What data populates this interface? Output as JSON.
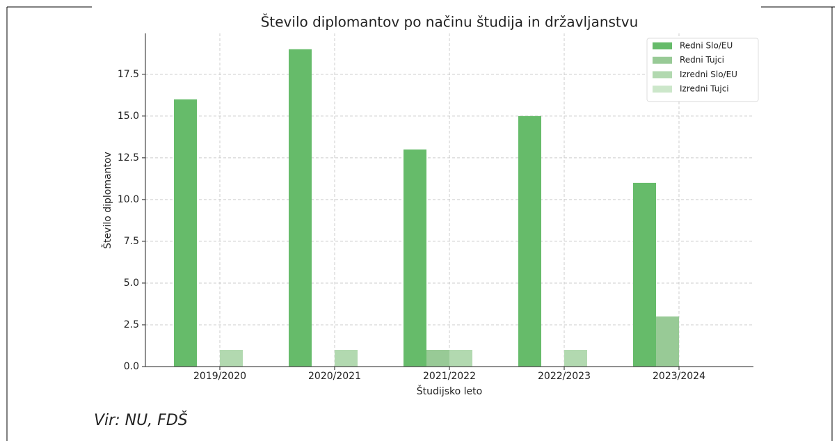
{
  "chart_data": {
    "type": "bar",
    "title": "Število diplomantov po načinu študija in državljanstvu",
    "xlabel": "Študijsko leto",
    "ylabel": "Število diplomantov",
    "categories": [
      "2019/2020",
      "2020/2021",
      "2021/2022",
      "2022/2023",
      "2023/2024"
    ],
    "series": [
      {
        "name": "Redni Slo/EU",
        "color": "#66bb6a",
        "values": [
          16,
          19,
          13,
          15,
          11
        ]
      },
      {
        "name": "Redni Tujci",
        "color": "#98ca96",
        "values": [
          0,
          0,
          1,
          0,
          3
        ]
      },
      {
        "name": "Izredni Slo/EU",
        "color": "#b2d9b0",
        "values": [
          1,
          1,
          1,
          1,
          0
        ]
      },
      {
        "name": "Izredni Tujci",
        "color": "#cce7ca",
        "values": [
          0,
          0,
          0,
          0,
          0
        ]
      }
    ],
    "ylim": [
      0,
      19.95
    ],
    "yticks": [
      {
        "value": 0,
        "label": "0.0"
      },
      2.5,
      {
        "value": 5,
        "label": "5.0"
      },
      7.5,
      {
        "value": 10,
        "label": "10.0"
      },
      12.5,
      {
        "value": 15,
        "label": "15.0"
      },
      17.5
    ],
    "grid": true,
    "legend": "upper right"
  },
  "source": "Vir: NU, FDŠ"
}
